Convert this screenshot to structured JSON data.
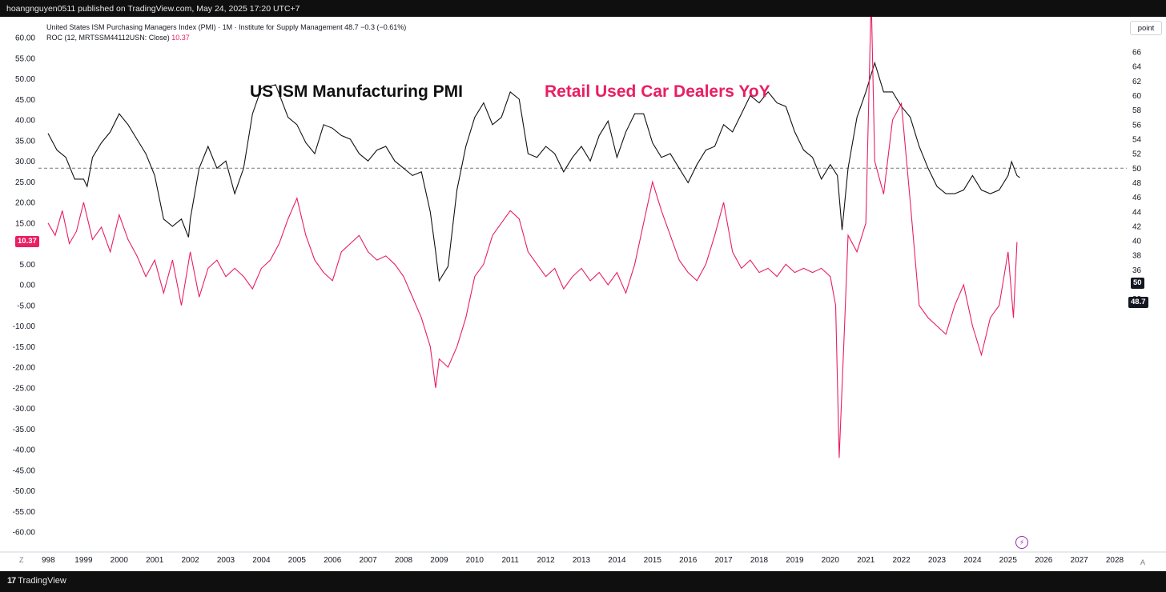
{
  "header": {
    "publish_line": "hoangnguyen0511 published on TradingView.com, May 24, 2025 17:20 UTC+7"
  },
  "legend": {
    "line1": "United States ISM Purchasing Managers Index (PMI) · 1M · Institute for Supply Management  48.7  −0.3 (−0.61%)",
    "line2_prefix": "ROC (12, MRTSSM44112USN: Close)",
    "line2_value": "10.37"
  },
  "annotations": {
    "black_title": "US ISM Manufacturing PMI",
    "pink_title": "Retail Used Car Dealers YoY"
  },
  "right_axis": {
    "unit_button": "point"
  },
  "badges": {
    "roc_last": "10.37",
    "pmi_ref": "50",
    "pmi_last": "48.7"
  },
  "bottom": {
    "z_button": "Z",
    "a_button": "A",
    "brand": "TradingView",
    "brand_mark": "17"
  },
  "colors": {
    "pmi": "#111111",
    "roc": "#e91e63",
    "badge_roc_bg": "#e91e63",
    "badge_dark_bg": "#131722"
  },
  "icons": {
    "indicator_button": "lightning-icon"
  },
  "chart_data": {
    "type": "line",
    "x_start_year": 1998,
    "x_ticks": [
      "998",
      "1999",
      "2000",
      "2001",
      "2002",
      "2003",
      "2004",
      "2005",
      "2006",
      "2007",
      "2008",
      "2009",
      "2010",
      "2011",
      "2012",
      "2013",
      "2014",
      "2015",
      "2016",
      "2017",
      "2018",
      "2019",
      "2020",
      "2021",
      "2022",
      "2023",
      "2024",
      "2025",
      "2026",
      "2027",
      "2028"
    ],
    "left_axis": {
      "ylim": [
        -60,
        60
      ],
      "ticks": [
        "60.00",
        "55.00",
        "50.00",
        "45.00",
        "40.00",
        "35.00",
        "30.00",
        "25.00",
        "20.00",
        "15.00",
        "10.00",
        "5.00",
        "0.00",
        "-5.00",
        "-10.00",
        "-15.00",
        "-20.00",
        "-25.00",
        "-30.00",
        "-35.00",
        "-40.00",
        "-45.00",
        "-50.00",
        "-55.00",
        "-60.00"
      ]
    },
    "right_axis": {
      "ylim": [
        32,
        66
      ],
      "ticks": [
        "66",
        "64",
        "62",
        "60",
        "58",
        "56",
        "54",
        "52",
        "50",
        "48",
        "46",
        "44",
        "42",
        "40",
        "38",
        "36",
        "34",
        "32"
      ]
    },
    "reference_line": {
      "axis": "right",
      "value": 50,
      "style": "dashed"
    },
    "series": [
      {
        "axis": "right",
        "points": [
          [
            1998.0,
            54.8
          ],
          [
            1998.25,
            52.5
          ],
          [
            1998.5,
            51.5
          ],
          [
            1998.75,
            48.5
          ],
          [
            1999.0,
            48.5
          ],
          [
            1999.1,
            47.5
          ],
          [
            1999.25,
            51.5
          ],
          [
            1999.5,
            53.5
          ],
          [
            1999.75,
            55.0
          ],
          [
            2000.0,
            57.5
          ],
          [
            2000.25,
            56.0
          ],
          [
            2000.5,
            54.0
          ],
          [
            2000.75,
            52.0
          ],
          [
            2001.0,
            49.0
          ],
          [
            2001.25,
            43.0
          ],
          [
            2001.5,
            42.0
          ],
          [
            2001.75,
            43.0
          ],
          [
            2001.95,
            40.5
          ],
          [
            2002.0,
            43.0
          ],
          [
            2002.25,
            50.0
          ],
          [
            2002.5,
            53.0
          ],
          [
            2002.75,
            50.0
          ],
          [
            2003.0,
            51.0
          ],
          [
            2003.25,
            46.5
          ],
          [
            2003.5,
            50.0
          ],
          [
            2003.75,
            57.5
          ],
          [
            2004.0,
            61.0
          ],
          [
            2004.4,
            61.5
          ],
          [
            2004.75,
            57.0
          ],
          [
            2005.0,
            56.0
          ],
          [
            2005.25,
            53.5
          ],
          [
            2005.5,
            52.0
          ],
          [
            2005.75,
            56.0
          ],
          [
            2006.0,
            55.5
          ],
          [
            2006.25,
            54.5
          ],
          [
            2006.5,
            54.0
          ],
          [
            2006.75,
            52.0
          ],
          [
            2007.0,
            51.0
          ],
          [
            2007.25,
            52.5
          ],
          [
            2007.5,
            53.0
          ],
          [
            2007.75,
            51.0
          ],
          [
            2008.0,
            50.0
          ],
          [
            2008.25,
            49.0
          ],
          [
            2008.5,
            49.5
          ],
          [
            2008.75,
            44.0
          ],
          [
            2008.9,
            38.5
          ],
          [
            2009.0,
            34.5
          ],
          [
            2009.25,
            36.5
          ],
          [
            2009.5,
            47.0
          ],
          [
            2009.75,
            53.0
          ],
          [
            2010.0,
            57.0
          ],
          [
            2010.25,
            59.0
          ],
          [
            2010.5,
            56.0
          ],
          [
            2010.75,
            57.0
          ],
          [
            2011.0,
            60.5
          ],
          [
            2011.25,
            59.5
          ],
          [
            2011.5,
            52.0
          ],
          [
            2011.75,
            51.5
          ],
          [
            2012.0,
            53.0
          ],
          [
            2012.25,
            52.0
          ],
          [
            2012.5,
            49.5
          ],
          [
            2012.75,
            51.5
          ],
          [
            2013.0,
            53.0
          ],
          [
            2013.25,
            51.0
          ],
          [
            2013.5,
            54.5
          ],
          [
            2013.75,
            56.5
          ],
          [
            2014.0,
            51.5
          ],
          [
            2014.25,
            55.0
          ],
          [
            2014.5,
            57.5
          ],
          [
            2014.75,
            57.5
          ],
          [
            2015.0,
            53.5
          ],
          [
            2015.25,
            51.5
          ],
          [
            2015.5,
            52.0
          ],
          [
            2015.75,
            50.0
          ],
          [
            2016.0,
            48.0
          ],
          [
            2016.25,
            50.5
          ],
          [
            2016.5,
            52.5
          ],
          [
            2016.75,
            53.0
          ],
          [
            2017.0,
            56.0
          ],
          [
            2017.25,
            55.0
          ],
          [
            2017.5,
            57.5
          ],
          [
            2017.75,
            60.0
          ],
          [
            2018.0,
            59.0
          ],
          [
            2018.25,
            60.5
          ],
          [
            2018.5,
            59.0
          ],
          [
            2018.75,
            58.5
          ],
          [
            2019.0,
            55.0
          ],
          [
            2019.25,
            52.5
          ],
          [
            2019.5,
            51.5
          ],
          [
            2019.75,
            48.5
          ],
          [
            2020.0,
            50.5
          ],
          [
            2020.2,
            49.0
          ],
          [
            2020.33,
            41.5
          ],
          [
            2020.5,
            50.0
          ],
          [
            2020.75,
            57.0
          ],
          [
            2021.0,
            60.5
          ],
          [
            2021.25,
            64.5
          ],
          [
            2021.5,
            60.5
          ],
          [
            2021.75,
            60.5
          ],
          [
            2022.0,
            58.5
          ],
          [
            2022.25,
            57.0
          ],
          [
            2022.5,
            53.0
          ],
          [
            2022.75,
            50.0
          ],
          [
            2023.0,
            47.5
          ],
          [
            2023.25,
            46.5
          ],
          [
            2023.5,
            46.5
          ],
          [
            2023.75,
            47.0
          ],
          [
            2024.0,
            49.0
          ],
          [
            2024.25,
            47.0
          ],
          [
            2024.5,
            46.5
          ],
          [
            2024.75,
            47.0
          ],
          [
            2025.0,
            49.0
          ],
          [
            2025.1,
            50.9
          ],
          [
            2025.25,
            49.0
          ],
          [
            2025.33,
            48.7
          ]
        ]
      },
      {
        "axis": "left",
        "points": [
          [
            1998.0,
            15.0
          ],
          [
            1998.2,
            12.0
          ],
          [
            1998.4,
            18.0
          ],
          [
            1998.6,
            10.0
          ],
          [
            1998.8,
            13.0
          ],
          [
            1999.0,
            20.0
          ],
          [
            1999.25,
            11.0
          ],
          [
            1999.5,
            14.0
          ],
          [
            1999.75,
            8.0
          ],
          [
            2000.0,
            17.0
          ],
          [
            2000.25,
            11.0
          ],
          [
            2000.5,
            7.0
          ],
          [
            2000.75,
            2.0
          ],
          [
            2001.0,
            6.0
          ],
          [
            2001.25,
            -2.0
          ],
          [
            2001.5,
            6.0
          ],
          [
            2001.75,
            -5.0
          ],
          [
            2002.0,
            8.0
          ],
          [
            2002.25,
            -3.0
          ],
          [
            2002.5,
            4.0
          ],
          [
            2002.75,
            6.0
          ],
          [
            2003.0,
            2.0
          ],
          [
            2003.25,
            4.0
          ],
          [
            2003.5,
            2.0
          ],
          [
            2003.75,
            -1.0
          ],
          [
            2004.0,
            4.0
          ],
          [
            2004.25,
            6.0
          ],
          [
            2004.5,
            10.0
          ],
          [
            2004.75,
            16.0
          ],
          [
            2005.0,
            21.0
          ],
          [
            2005.25,
            12.0
          ],
          [
            2005.5,
            6.0
          ],
          [
            2005.75,
            3.0
          ],
          [
            2006.0,
            1.0
          ],
          [
            2006.25,
            8.0
          ],
          [
            2006.5,
            10.0
          ],
          [
            2006.75,
            12.0
          ],
          [
            2007.0,
            8.0
          ],
          [
            2007.25,
            6.0
          ],
          [
            2007.5,
            7.0
          ],
          [
            2007.75,
            5.0
          ],
          [
            2008.0,
            2.0
          ],
          [
            2008.25,
            -3.0
          ],
          [
            2008.5,
            -8.0
          ],
          [
            2008.75,
            -15.0
          ],
          [
            2008.9,
            -25.0
          ],
          [
            2009.0,
            -18.0
          ],
          [
            2009.25,
            -20.0
          ],
          [
            2009.5,
            -15.0
          ],
          [
            2009.75,
            -8.0
          ],
          [
            2010.0,
            2.0
          ],
          [
            2010.25,
            5.0
          ],
          [
            2010.5,
            12.0
          ],
          [
            2010.75,
            15.0
          ],
          [
            2011.0,
            18.0
          ],
          [
            2011.25,
            16.0
          ],
          [
            2011.5,
            8.0
          ],
          [
            2011.75,
            5.0
          ],
          [
            2012.0,
            2.0
          ],
          [
            2012.25,
            4.0
          ],
          [
            2012.5,
            -1.0
          ],
          [
            2012.75,
            2.0
          ],
          [
            2013.0,
            4.0
          ],
          [
            2013.25,
            1.0
          ],
          [
            2013.5,
            3.0
          ],
          [
            2013.75,
            0.0
          ],
          [
            2014.0,
            3.0
          ],
          [
            2014.25,
            -2.0
          ],
          [
            2014.5,
            5.0
          ],
          [
            2014.75,
            15.0
          ],
          [
            2015.0,
            25.0
          ],
          [
            2015.25,
            18.0
          ],
          [
            2015.5,
            12.0
          ],
          [
            2015.75,
            6.0
          ],
          [
            2016.0,
            3.0
          ],
          [
            2016.25,
            1.0
          ],
          [
            2016.5,
            5.0
          ],
          [
            2016.75,
            12.0
          ],
          [
            2017.0,
            20.0
          ],
          [
            2017.25,
            8.0
          ],
          [
            2017.5,
            4.0
          ],
          [
            2017.75,
            6.0
          ],
          [
            2018.0,
            3.0
          ],
          [
            2018.25,
            4.0
          ],
          [
            2018.5,
            2.0
          ],
          [
            2018.75,
            5.0
          ],
          [
            2019.0,
            3.0
          ],
          [
            2019.25,
            4.0
          ],
          [
            2019.5,
            3.0
          ],
          [
            2019.75,
            4.0
          ],
          [
            2020.0,
            2.0
          ],
          [
            2020.15,
            -5.0
          ],
          [
            2020.25,
            -42.0
          ],
          [
            2020.4,
            -10.0
          ],
          [
            2020.5,
            12.0
          ],
          [
            2020.75,
            8.0
          ],
          [
            2021.0,
            15.0
          ],
          [
            2021.15,
            70.0
          ],
          [
            2021.25,
            30.0
          ],
          [
            2021.5,
            22.0
          ],
          [
            2021.75,
            40.0
          ],
          [
            2022.0,
            44.0
          ],
          [
            2022.25,
            20.0
          ],
          [
            2022.5,
            -5.0
          ],
          [
            2022.75,
            -8.0
          ],
          [
            2023.0,
            -10.0
          ],
          [
            2023.25,
            -12.0
          ],
          [
            2023.5,
            -5.0
          ],
          [
            2023.75,
            0.0
          ],
          [
            2024.0,
            -10.0
          ],
          [
            2024.25,
            -17.0
          ],
          [
            2024.5,
            -8.0
          ],
          [
            2024.75,
            -5.0
          ],
          [
            2025.0,
            8.0
          ],
          [
            2025.15,
            -8.0
          ],
          [
            2025.25,
            10.37
          ]
        ]
      }
    ]
  }
}
